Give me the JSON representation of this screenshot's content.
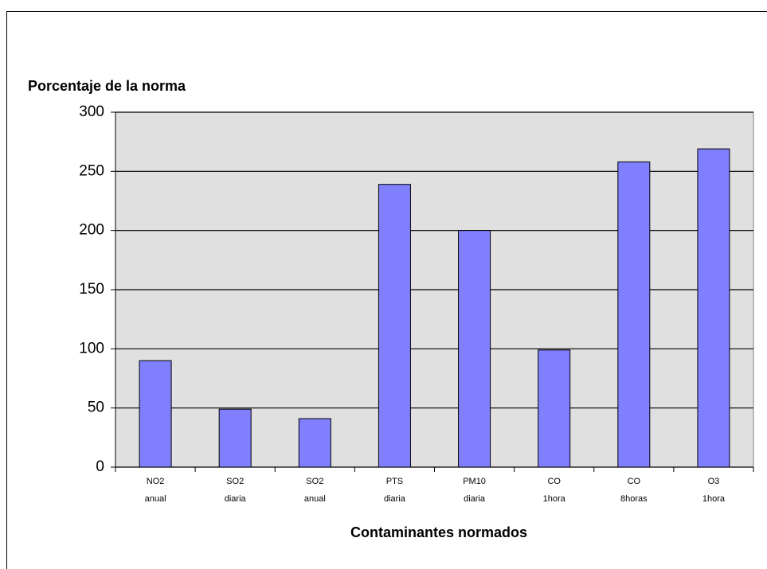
{
  "chart_data": {
    "type": "bar",
    "ylabel": "Porcentaje de la norma",
    "xlabel": "Contaminantes normados",
    "categories": [
      [
        "NO2",
        "anual"
      ],
      [
        "SO2",
        "diaria"
      ],
      [
        "SO2",
        "anual"
      ],
      [
        "PTS",
        "diaria"
      ],
      [
        "PM10",
        "diaria"
      ],
      [
        "CO",
        "1hora"
      ],
      [
        "CO",
        "8horas"
      ],
      [
        "O3",
        "1hora"
      ]
    ],
    "values": [
      90,
      49,
      41,
      239,
      200,
      99,
      258,
      269
    ],
    "color": "#8080ff",
    "ylim": [
      0,
      300
    ],
    "yticks": [
      0,
      50,
      100,
      150,
      200,
      250,
      300
    ],
    "grid": true
  }
}
